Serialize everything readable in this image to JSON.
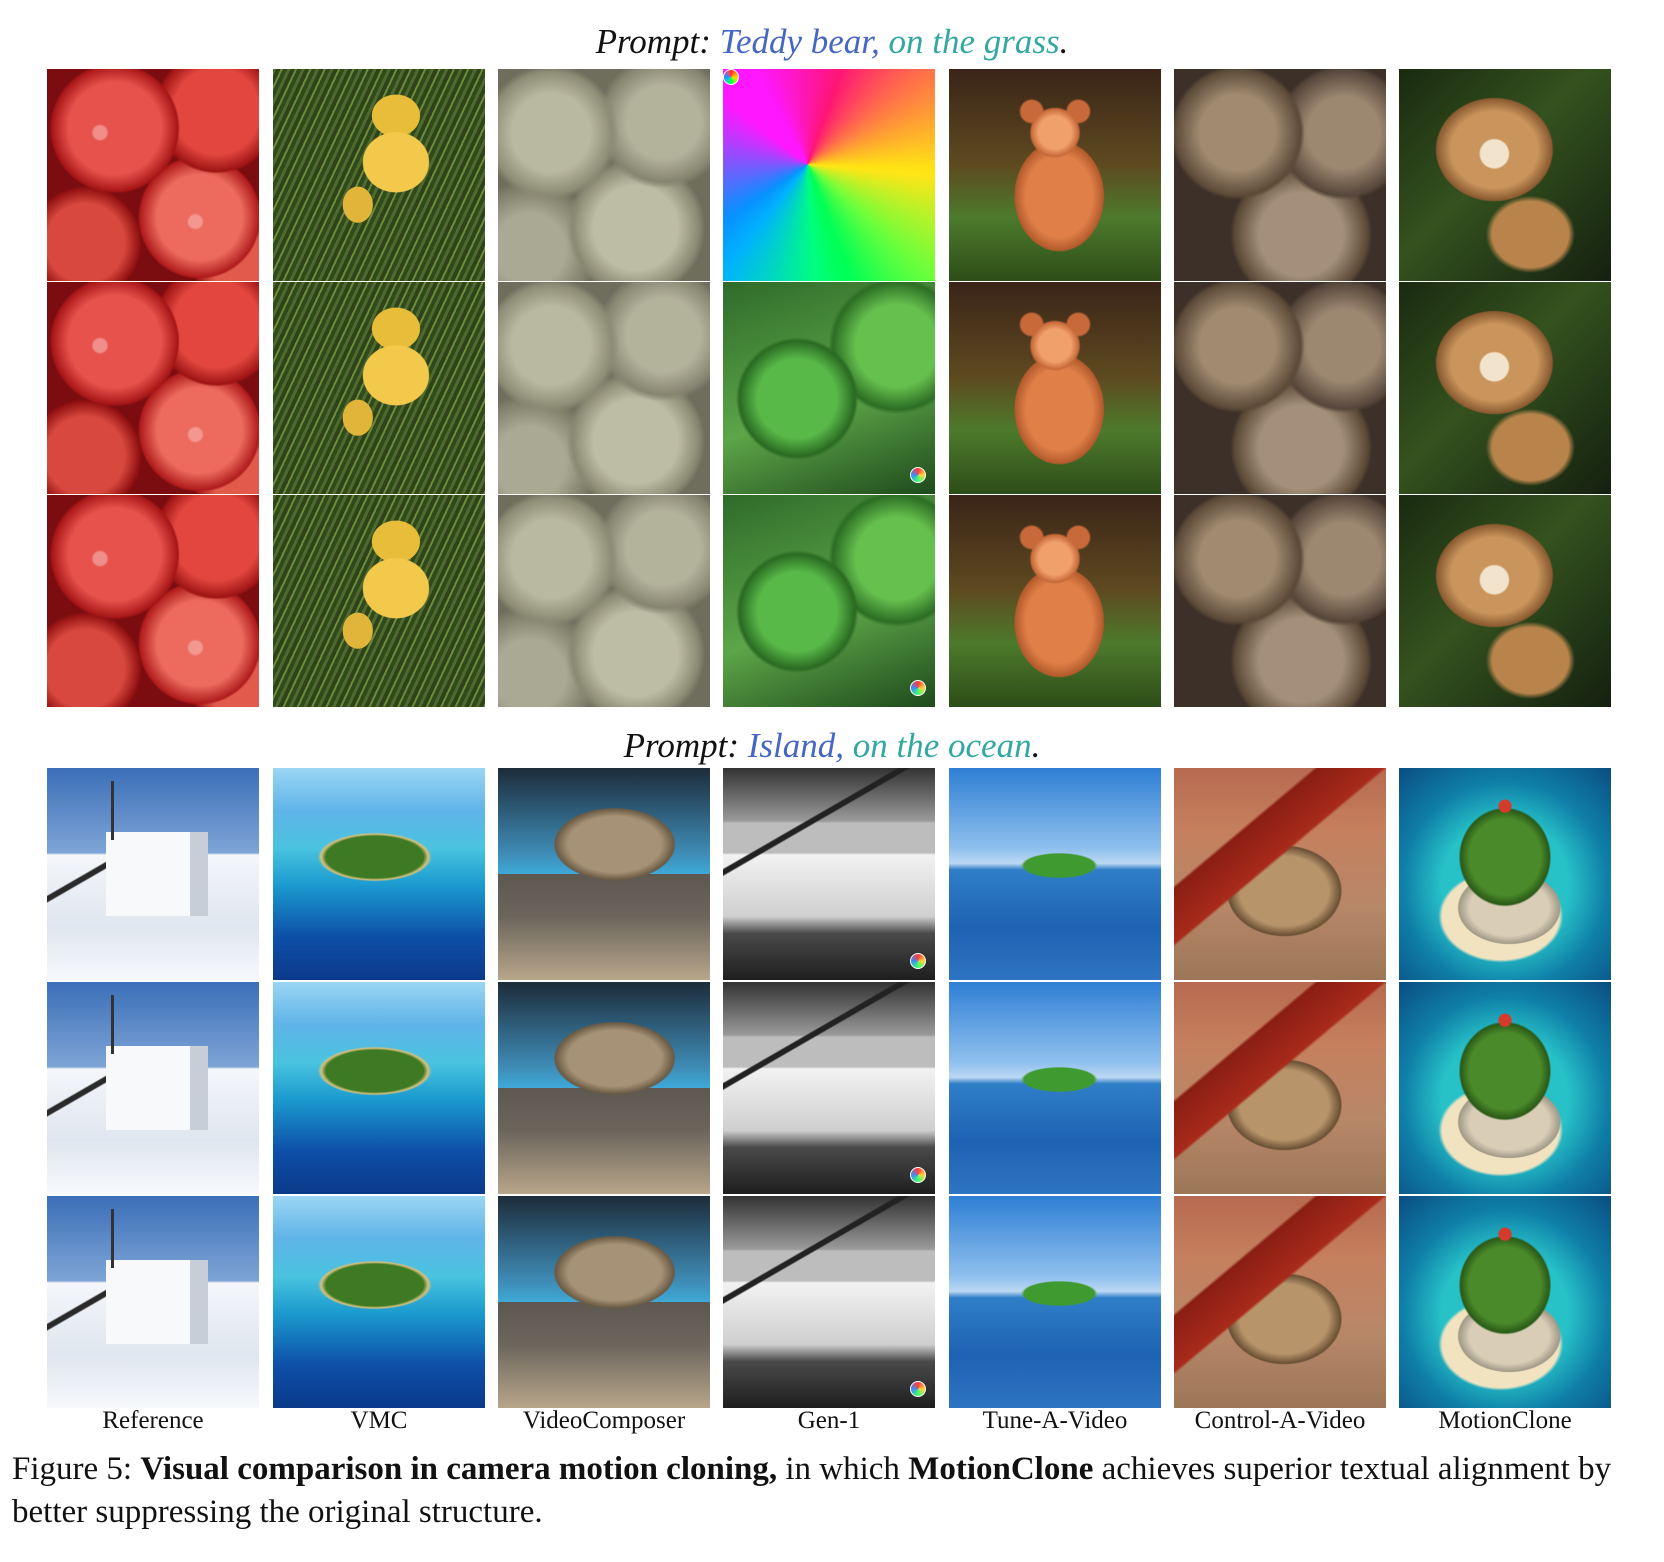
{
  "prompts": [
    {
      "prefix": "Prompt:",
      "subject": "Teddy bear",
      "sep": ",",
      "context": "on the grass",
      "end": "."
    },
    {
      "prefix": "Prompt:",
      "subject": "Island",
      "sep": ",",
      "context": "on the ocean",
      "end": "."
    }
  ],
  "columns": [
    "Reference",
    "VMC",
    "VideoComposer",
    "Gen-1",
    "Tune-A-Video",
    "Control-A-Video",
    "MotionClone"
  ],
  "caption": {
    "label": "Figure 5:",
    "bold_1": "Visual comparison in camera motion cloning,",
    "text_1": "in which",
    "bold_2": "MotionClone",
    "text_2": "achieves superior textual alignment by better suppressing the original structure."
  }
}
